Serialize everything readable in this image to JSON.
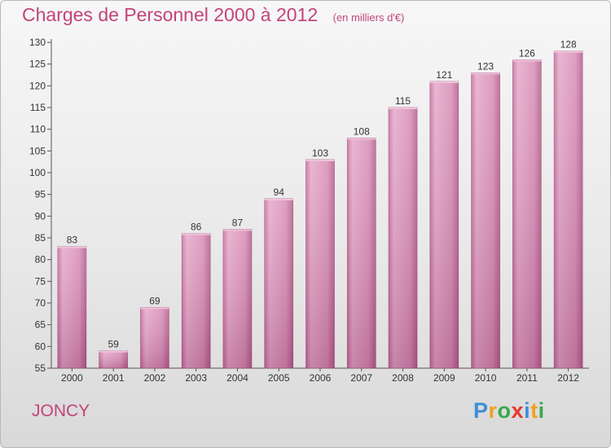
{
  "chart_data": {
    "type": "bar",
    "title": "Charges de Personnel 2000 à 2012",
    "unit": "(en milliers d'€)",
    "categories": [
      "2000",
      "2001",
      "2002",
      "2003",
      "2004",
      "2005",
      "2006",
      "2007",
      "2008",
      "2009",
      "2010",
      "2011",
      "2012"
    ],
    "values": [
      83,
      59,
      69,
      86,
      87,
      94,
      103,
      108,
      115,
      121,
      123,
      126,
      128
    ],
    "ylim": [
      55,
      130
    ],
    "yticks": [
      55,
      60,
      65,
      70,
      75,
      80,
      85,
      90,
      95,
      100,
      105,
      110,
      115,
      120,
      125,
      130
    ],
    "xlabel": "",
    "ylabel": "",
    "grid": false,
    "legend": "none",
    "bar_color": "#d78fb6"
  },
  "footer": {
    "commune": "JONCY",
    "logo_letters": [
      "P",
      "r",
      "o",
      "x",
      "i",
      "t",
      "i"
    ],
    "logo_colors": [
      "#3d8fd6",
      "#f0a020",
      "#39a84a",
      "#e5382c",
      "#3d8fd6",
      "#f0a020",
      "#39a84a"
    ]
  }
}
